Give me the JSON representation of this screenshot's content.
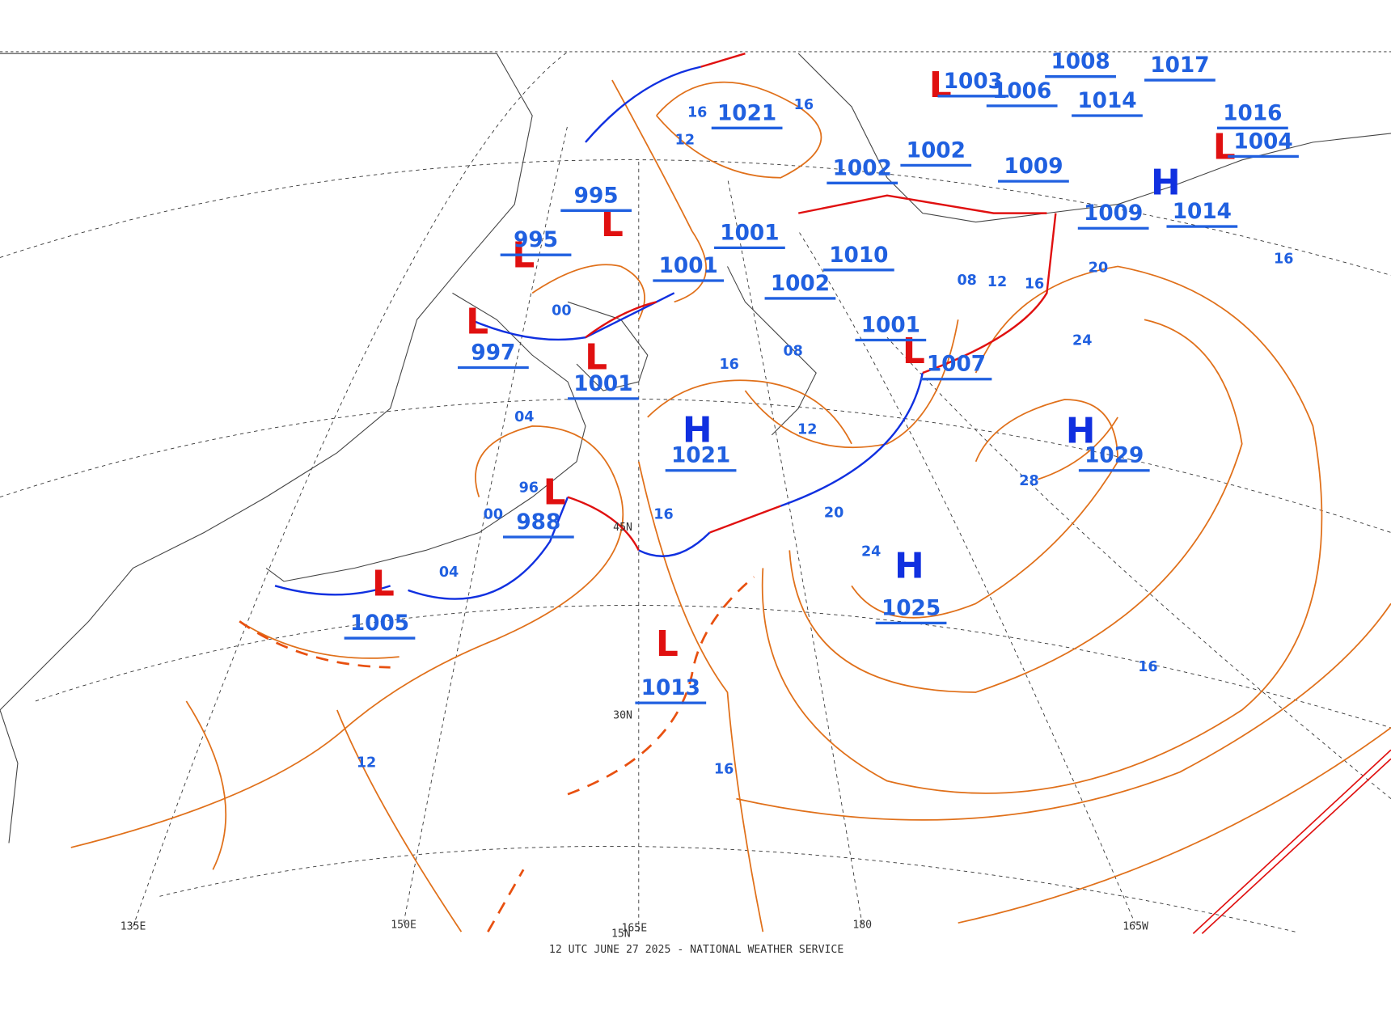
{
  "footer": "12 UTC JUNE 27 2025 - NATIONAL WEATHER SERVICE",
  "pressure_centers": [
    {
      "symbol": "L",
      "value": "1005"
    },
    {
      "symbol": "L",
      "value": "988"
    },
    {
      "symbol": "L",
      "value": "997"
    },
    {
      "symbol": "L",
      "value": "995"
    },
    {
      "symbol": "L",
      "value": "995"
    },
    {
      "symbol": "L",
      "value": "1001"
    },
    {
      "symbol": "L",
      "value": "1013"
    },
    {
      "symbol": "H",
      "value": "1021"
    },
    {
      "symbol": "H",
      "value": "1025"
    },
    {
      "symbol": "H",
      "value": "1029"
    },
    {
      "symbol": "L",
      "value": "1007"
    },
    {
      "symbol": "H",
      "value": "1014"
    },
    {
      "symbol": "L",
      "value": "1004"
    },
    {
      "symbol": "L",
      "value": "1003"
    }
  ],
  "pressure_values": [
    "1021",
    "1001",
    "1001",
    "1002",
    "1010",
    "1001",
    "1002",
    "1002",
    "1009",
    "1009",
    "1016",
    "1006",
    "1014",
    "1008",
    "1017"
  ],
  "isobar_labels": [
    "16",
    "12",
    "16",
    "00",
    "04",
    "00",
    "04",
    "96",
    "08",
    "16",
    "12",
    "16",
    "20",
    "24",
    "28",
    "20",
    "24",
    "16",
    "08",
    "12",
    "16",
    "16",
    "12",
    "16"
  ],
  "graticule_labels": [
    "135E",
    "150E",
    "165E",
    "180",
    "165W",
    "30N",
    "45N",
    "15N"
  ]
}
